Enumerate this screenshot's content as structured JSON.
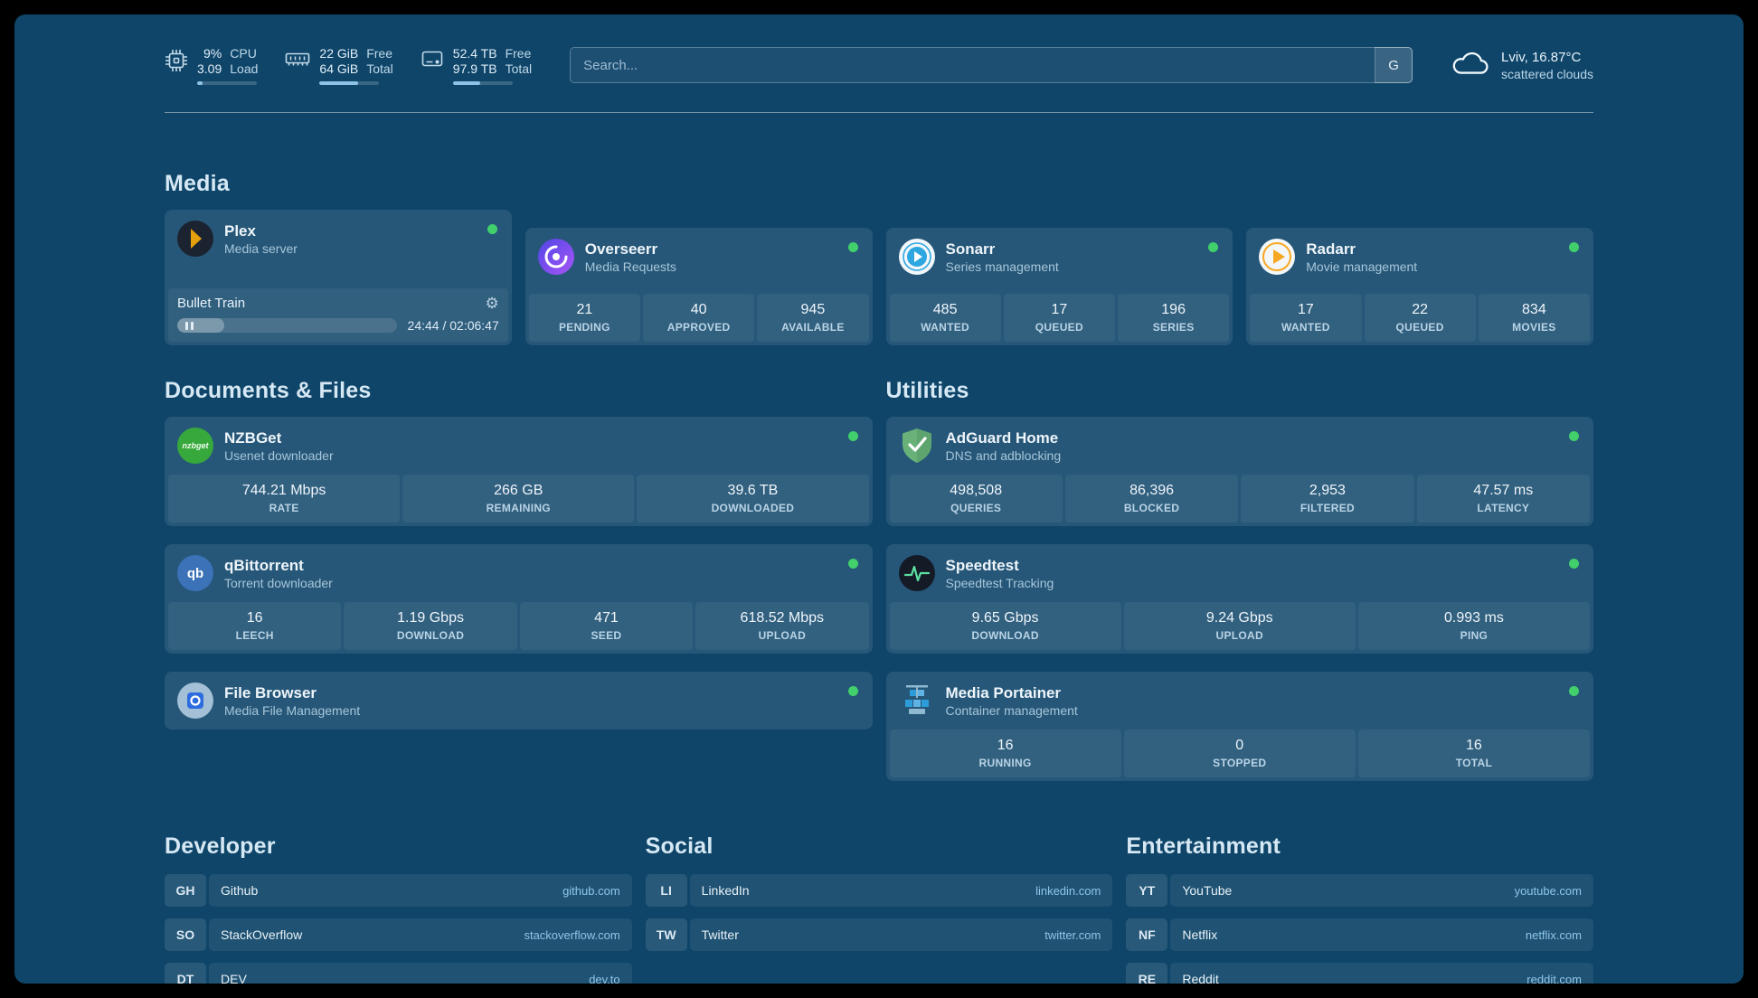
{
  "colors": {
    "background": "#0e4569",
    "status_online": "#41d06b",
    "plex_gold": "#e5a00d",
    "accent_blue": "#8ec3e6"
  },
  "topbar": {
    "resources": [
      {
        "icon": "cpu-icon",
        "value_top": "9%",
        "value_bottom": "3.09",
        "label_top": "CPU",
        "label_bottom": "Load",
        "progress_pct": 9
      },
      {
        "icon": "memory-icon",
        "value_top": "22 GiB",
        "value_bottom": "64 GiB",
        "label_top": "Free",
        "label_bottom": "Total",
        "progress_pct": 65
      },
      {
        "icon": "disk-icon",
        "value_top": "52.4 TB",
        "value_bottom": "97.9 TB",
        "label_top": "Free",
        "label_bottom": "Total",
        "progress_pct": 46
      }
    ],
    "search": {
      "placeholder": "Search...",
      "provider_button": "G"
    },
    "weather": {
      "location": "Lviv, 16.87°C",
      "condition": "scattered clouds"
    }
  },
  "groups": [
    {
      "title": "Media",
      "services": [
        {
          "name": "Plex",
          "subtitle": "Media server",
          "icon": "plex-icon",
          "status": "online",
          "player": {
            "track": "Bullet Train",
            "time": "24:44 / 02:06:47",
            "progress_pct": 19
          }
        },
        {
          "name": "Overseerr",
          "subtitle": "Media Requests",
          "icon": "overseerr-icon",
          "status": "online",
          "stats": [
            {
              "value": "21",
              "label": "PENDING"
            },
            {
              "value": "40",
              "label": "APPROVED"
            },
            {
              "value": "945",
              "label": "AVAILABLE"
            }
          ]
        },
        {
          "name": "Sonarr",
          "subtitle": "Series management",
          "icon": "sonarr-icon",
          "status": "online",
          "stats": [
            {
              "value": "485",
              "label": "WANTED"
            },
            {
              "value": "17",
              "label": "QUEUED"
            },
            {
              "value": "196",
              "label": "SERIES"
            }
          ]
        },
        {
          "name": "Radarr",
          "subtitle": "Movie management",
          "icon": "radarr-icon",
          "status": "online",
          "stats": [
            {
              "value": "17",
              "label": "WANTED"
            },
            {
              "value": "22",
              "label": "QUEUED"
            },
            {
              "value": "834",
              "label": "MOVIES"
            }
          ]
        }
      ]
    },
    {
      "title": "Documents & Files",
      "services": [
        {
          "name": "NZBGet",
          "subtitle": "Usenet downloader",
          "icon": "nzbget-icon",
          "status": "online",
          "icon_text": "nzbget",
          "stats": [
            {
              "value": "744.21 Mbps",
              "label": "RATE"
            },
            {
              "value": "266 GB",
              "label": "REMAINING"
            },
            {
              "value": "39.6 TB",
              "label": "DOWNLOADED"
            }
          ]
        },
        {
          "name": "qBittorrent",
          "subtitle": "Torrent downloader",
          "icon": "qbittorrent-icon",
          "status": "online",
          "icon_text": "qb",
          "stats": [
            {
              "value": "16",
              "label": "LEECH"
            },
            {
              "value": "1.19 Gbps",
              "label": "DOWNLOAD"
            },
            {
              "value": "471",
              "label": "SEED"
            },
            {
              "value": "618.52 Mbps",
              "label": "UPLOAD"
            }
          ]
        },
        {
          "name": "File Browser",
          "subtitle": "Media File Management",
          "icon": "filebrowser-icon",
          "status": "online",
          "stats": []
        }
      ]
    },
    {
      "title": "Utilities",
      "services": [
        {
          "name": "AdGuard Home",
          "subtitle": "DNS and adblocking",
          "icon": "adguard-icon",
          "status": "online",
          "stats": [
            {
              "value": "498,508",
              "label": "QUERIES"
            },
            {
              "value": "86,396",
              "label": "BLOCKED"
            },
            {
              "value": "2,953",
              "label": "FILTERED"
            },
            {
              "value": "47.57 ms",
              "label": "LATENCY"
            }
          ]
        },
        {
          "name": "Speedtest",
          "subtitle": "Speedtest Tracking",
          "icon": "speedtest-icon",
          "status": "online",
          "stats": [
            {
              "value": "9.65 Gbps",
              "label": "DOWNLOAD"
            },
            {
              "value": "9.24 Gbps",
              "label": "UPLOAD"
            },
            {
              "value": "0.993 ms",
              "label": "PING"
            }
          ]
        },
        {
          "name": "Media Portainer",
          "subtitle": "Container management",
          "icon": "portainer-icon",
          "status": "online",
          "stats": [
            {
              "value": "16",
              "label": "RUNNING"
            },
            {
              "value": "0",
              "label": "STOPPED"
            },
            {
              "value": "16",
              "label": "TOTAL"
            }
          ]
        }
      ]
    }
  ],
  "bookmarks": [
    {
      "title": "Developer",
      "items": [
        {
          "abbr": "GH",
          "name": "Github",
          "domain": "github.com"
        },
        {
          "abbr": "SO",
          "name": "StackOverflow",
          "domain": "stackoverflow.com"
        },
        {
          "abbr": "DT",
          "name": "DEV",
          "domain": "dev.to"
        }
      ]
    },
    {
      "title": "Social",
      "items": [
        {
          "abbr": "LI",
          "name": "LinkedIn",
          "domain": "linkedin.com"
        },
        {
          "abbr": "TW",
          "name": "Twitter",
          "domain": "twitter.com"
        }
      ]
    },
    {
      "title": "Entertainment",
      "items": [
        {
          "abbr": "YT",
          "name": "YouTube",
          "domain": "youtube.com"
        },
        {
          "abbr": "NF",
          "name": "Netflix",
          "domain": "netflix.com"
        },
        {
          "abbr": "RE",
          "name": "Reddit",
          "domain": "reddit.com"
        }
      ]
    }
  ]
}
